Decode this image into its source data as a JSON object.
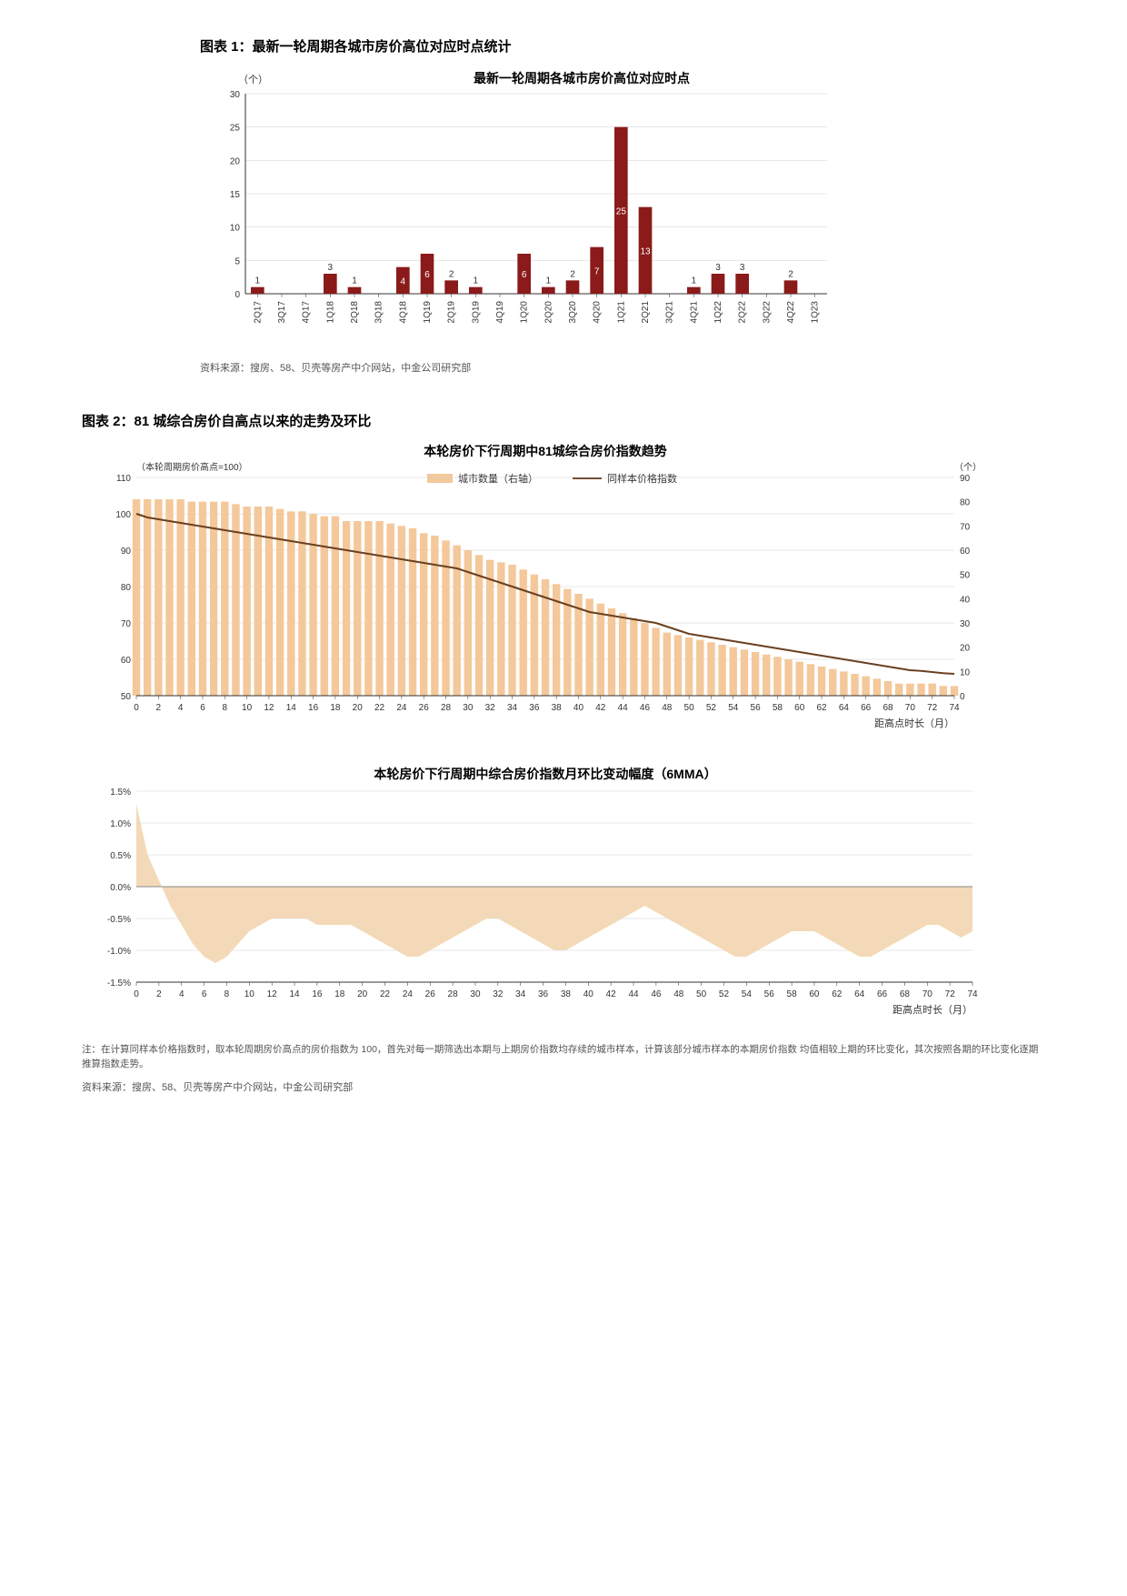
{
  "chart1": {
    "caption": "图表 1：最新一轮周期各城市房价高位对应时点统计",
    "unit_label": "（个）",
    "title": "最新一轮周期各城市房价高位对应时点",
    "categories": [
      "2Q17",
      "3Q17",
      "4Q17",
      "1Q18",
      "2Q18",
      "3Q18",
      "4Q18",
      "1Q19",
      "2Q19",
      "3Q19",
      "4Q19",
      "1Q20",
      "2Q20",
      "3Q20",
      "4Q20",
      "1Q21",
      "2Q21",
      "3Q21",
      "4Q21",
      "1Q22",
      "2Q22",
      "3Q22",
      "4Q22",
      "1Q23"
    ],
    "values": [
      1,
      0,
      0,
      3,
      1,
      0,
      4,
      6,
      2,
      1,
      0,
      6,
      1,
      2,
      7,
      25,
      13,
      0,
      1,
      3,
      3,
      0,
      2,
      0
    ],
    "show_label": [
      true,
      false,
      false,
      true,
      true,
      false,
      true,
      true,
      true,
      true,
      false,
      true,
      true,
      true,
      true,
      true,
      true,
      false,
      true,
      true,
      true,
      false,
      true,
      false
    ],
    "yaxis": {
      "min": 0,
      "max": 30,
      "step": 5
    },
    "bar_color": "#8b1a1a",
    "label_color_in": "#ffffff",
    "label_color_out": "#333333",
    "font_size_axis": 10,
    "font_size_label": 10,
    "source": "资料来源：搜房、58、贝壳等房产中介网站，中金公司研究部"
  },
  "chart2": {
    "caption": "图表 2：81 城综合房价自高点以来的走势及环比",
    "panelA": {
      "title": "本轮房价下行周期中81城综合房价指数趋势",
      "left_unit": "（本轮周期房价高点=100）",
      "right_unit": "（个）",
      "xaxis_label": "距高点时长（月）",
      "legend": [
        "城市数量（右轴）",
        "同样本价格指数"
      ],
      "legend_colors": [
        "#f4c89a",
        "#6b4020"
      ],
      "x_ticks": [
        0,
        2,
        4,
        6,
        8,
        10,
        12,
        14,
        16,
        18,
        20,
        22,
        24,
        26,
        28,
        30,
        32,
        34,
        36,
        38,
        40,
        42,
        44,
        46,
        48,
        50,
        52,
        54,
        56,
        58,
        60,
        62,
        64,
        66,
        68,
        70,
        72,
        74
      ],
      "y_left": {
        "min": 50,
        "max": 110,
        "step": 10
      },
      "y_right": {
        "min": 0,
        "max": 90,
        "step": 10
      },
      "bars": [
        81,
        81,
        81,
        81,
        81,
        80,
        80,
        80,
        80,
        79,
        78,
        78,
        78,
        77,
        76,
        76,
        75,
        74,
        74,
        72,
        72,
        72,
        72,
        71,
        70,
        69,
        67,
        66,
        64,
        62,
        60,
        58,
        56,
        55,
        54,
        52,
        50,
        48,
        46,
        44,
        42,
        40,
        38,
        36,
        34,
        32,
        30,
        28,
        26,
        25,
        24,
        23,
        22,
        21,
        20,
        19,
        18,
        17,
        16,
        15,
        14,
        13,
        12,
        11,
        10,
        9,
        8,
        7,
        6,
        5,
        5,
        5,
        5,
        4,
        4
      ],
      "line": [
        100,
        99,
        98.5,
        98,
        97.5,
        97,
        96.5,
        96,
        95.5,
        95,
        94.5,
        94,
        93.5,
        93,
        92.5,
        92,
        91.5,
        91,
        90.5,
        90,
        89.5,
        89,
        88.5,
        88,
        87.5,
        87,
        86.5,
        86,
        85.5,
        85,
        84,
        83,
        82,
        81,
        80,
        79,
        78,
        77,
        76,
        75,
        74,
        73,
        72.5,
        72,
        71.5,
        71,
        70.5,
        70,
        69,
        68,
        67,
        66.5,
        66,
        65.5,
        65,
        64.5,
        64,
        63.5,
        63,
        62.5,
        62,
        61.5,
        61,
        60.5,
        60,
        59.5,
        59,
        58.5,
        58,
        57.5,
        57,
        56.8,
        56.5,
        56.2,
        56
      ],
      "bar_color": "#f4c89a",
      "line_color": "#6b4020",
      "grid_color": "#d0d0d0",
      "bg_color": "#ffffff"
    },
    "panelB": {
      "title": "本轮房价下行周期中综合房价指数月环比变动幅度（6MMA）",
      "xaxis_label": "距高点时长（月）",
      "x_ticks": [
        0,
        2,
        4,
        6,
        8,
        10,
        12,
        14,
        16,
        18,
        20,
        22,
        24,
        26,
        28,
        30,
        32,
        34,
        36,
        38,
        40,
        42,
        44,
        46,
        48,
        50,
        52,
        54,
        56,
        58,
        60,
        62,
        64,
        66,
        68,
        70,
        72,
        74
      ],
      "y": {
        "min": -1.5,
        "max": 1.5,
        "step": 0.5,
        "format": "pct"
      },
      "area": [
        1.3,
        0.5,
        0.1,
        -0.3,
        -0.6,
        -0.9,
        -1.1,
        -1.2,
        -1.1,
        -0.9,
        -0.7,
        -0.6,
        -0.5,
        -0.5,
        -0.5,
        -0.5,
        -0.6,
        -0.6,
        -0.6,
        -0.6,
        -0.7,
        -0.8,
        -0.9,
        -1.0,
        -1.1,
        -1.1,
        -1.0,
        -0.9,
        -0.8,
        -0.7,
        -0.6,
        -0.5,
        -0.5,
        -0.6,
        -0.7,
        -0.8,
        -0.9,
        -1.0,
        -1.0,
        -0.9,
        -0.8,
        -0.7,
        -0.6,
        -0.5,
        -0.4,
        -0.3,
        -0.4,
        -0.5,
        -0.6,
        -0.7,
        -0.8,
        -0.9,
        -1.0,
        -1.1,
        -1.1,
        -1.0,
        -0.9,
        -0.8,
        -0.7,
        -0.7,
        -0.7,
        -0.8,
        -0.9,
        -1.0,
        -1.1,
        -1.1,
        -1.0,
        -0.9,
        -0.8,
        -0.7,
        -0.6,
        -0.6,
        -0.7,
        -0.8,
        -0.7
      ],
      "area_color": "#f4d9b8",
      "grid_color": "#d0d0d0",
      "zero_line_color": "#888888"
    },
    "footnote": "注：在计算同样本价格指数时，取本轮周期房价高点的房价指数为 100，首先对每一期筛选出本期与上期房价指数均存续的城市样本，计算该部分城市样本的本期房价指数\n均值相较上期的环比变化，其次按照各期的环比变化逐期推算指数走势。",
    "source": "资料来源：搜房、58、贝壳等房产中介网站，中金公司研究部"
  }
}
